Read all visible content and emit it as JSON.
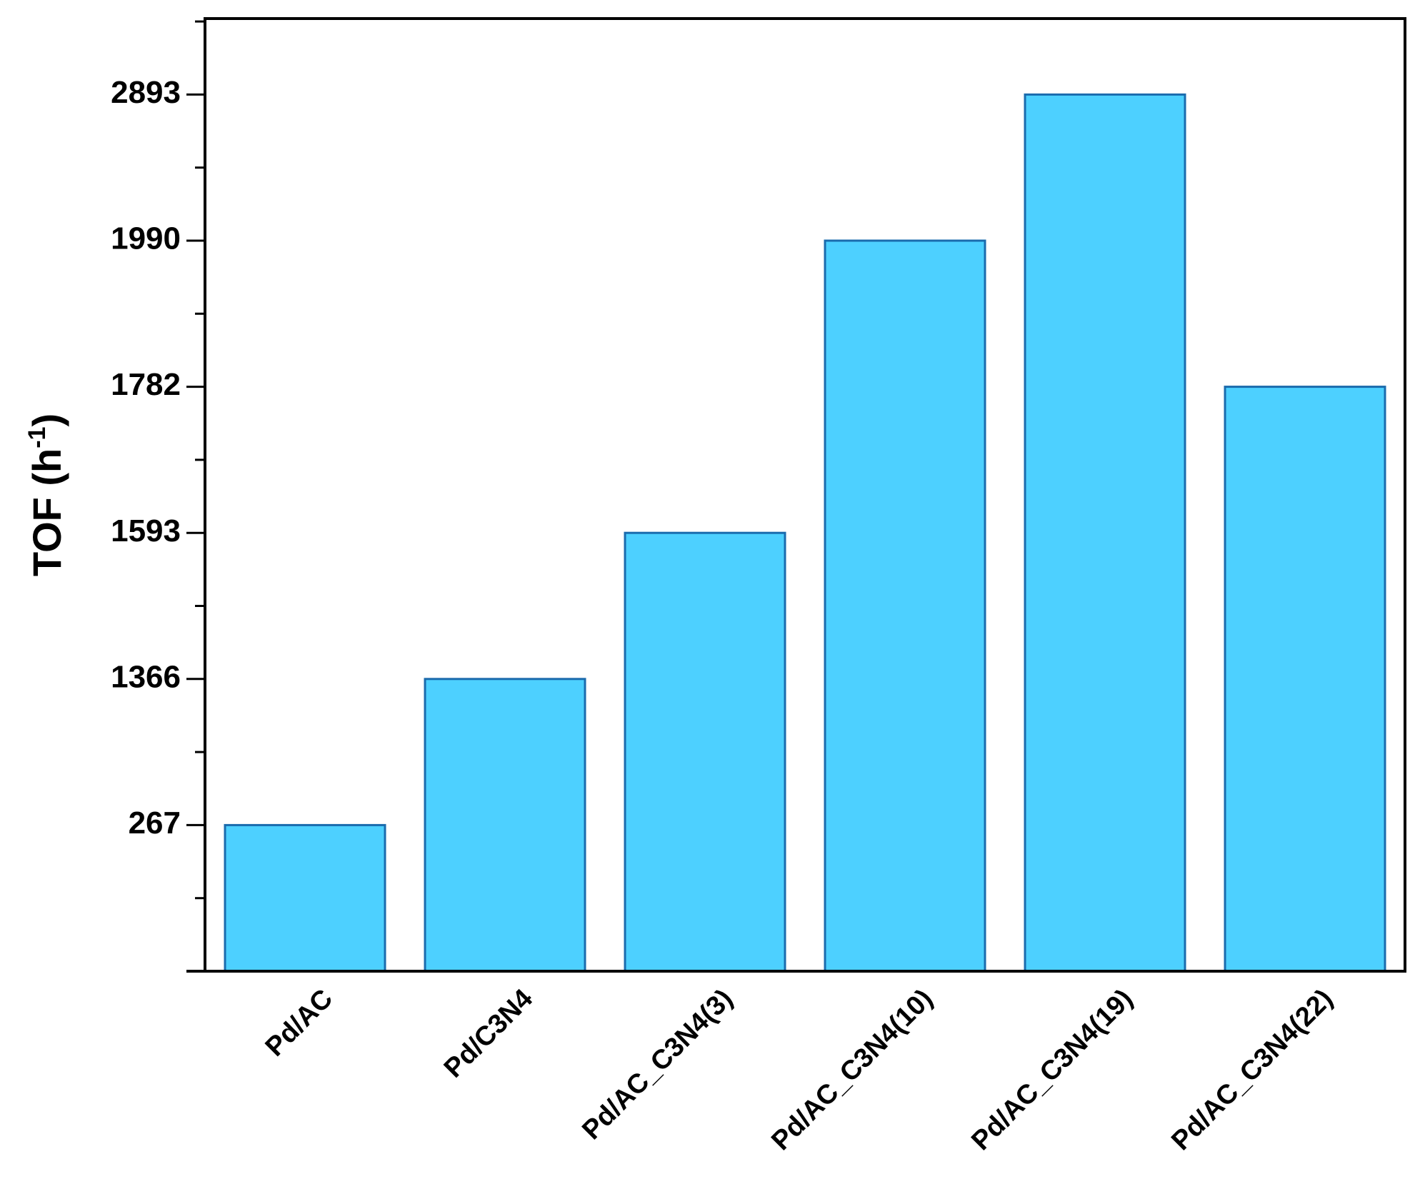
{
  "chart_data": {
    "type": "bar",
    "ylabel": {
      "text": "TOF (h",
      "sup": "-1",
      "end": ")"
    },
    "categories": [
      "Pd/AC",
      "Pd/C3N4",
      "Pd/AC_C3N4(3)",
      "Pd/AC_C3N4(10)",
      "Pd/AC_C3N4(19)",
      "Pd/AC_C3N4(22)"
    ],
    "values": [
      267,
      1366,
      1593,
      1990,
      2893,
      1782
    ],
    "color": "#4dd0ff",
    "edge_color": "#1a6bad",
    "ylim": [
      0,
      3300
    ],
    "yticks": [
      267,
      1366,
      1593,
      1782,
      1990,
      2893
    ],
    "y_scale": "tick-spaced",
    "grid": false
  }
}
